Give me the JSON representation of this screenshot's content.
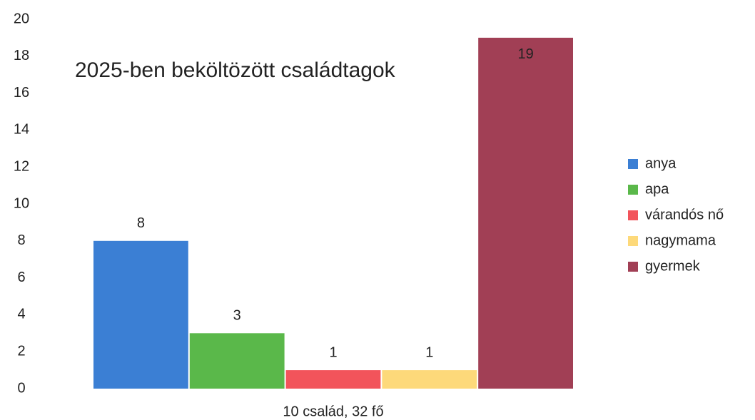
{
  "chart_data": {
    "type": "bar",
    "title": "2025-ben beköltözött családtagok",
    "categories": [
      "10 család, 32 fő"
    ],
    "series": [
      {
        "name": "anya",
        "color": "#3b7fd4",
        "values": [
          8
        ]
      },
      {
        "name": "apa",
        "color": "#5ab84a",
        "values": [
          3
        ]
      },
      {
        "name": "várandós nő",
        "color": "#f2545b",
        "values": [
          1
        ]
      },
      {
        "name": "nagymama",
        "color": "#fdd97a",
        "values": [
          1
        ]
      },
      {
        "name": "gyermek",
        "color": "#a13f55",
        "values": [
          19
        ]
      }
    ],
    "ylim": [
      0,
      20
    ],
    "yticks": [
      0,
      2,
      4,
      6,
      8,
      10,
      12,
      14,
      16,
      18,
      20
    ],
    "grid": false,
    "legend": "right"
  }
}
